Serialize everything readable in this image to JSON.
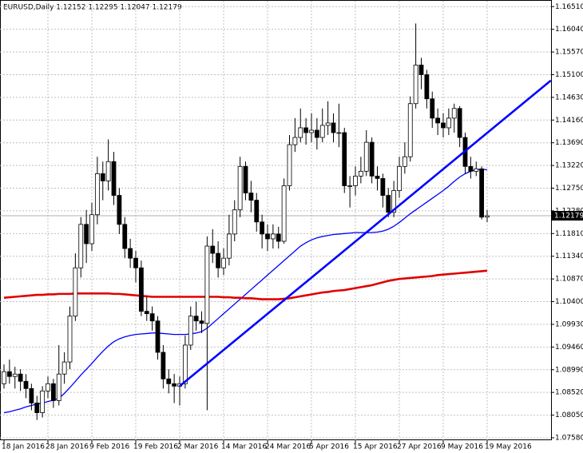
{
  "chart_data": {
    "type": "candlestick",
    "title": "EURUSD,Daily  1.12152 1.12295 1.12047 1.12179",
    "categories": [
      "18 Jan 2016",
      null,
      null,
      null,
      null,
      null,
      null,
      null,
      "28 Jan 2016",
      null,
      null,
      null,
      null,
      null,
      null,
      null,
      "9 Feb 2016",
      null,
      null,
      null,
      null,
      null,
      null,
      null,
      "19 Feb 2016",
      null,
      null,
      null,
      null,
      null,
      null,
      null,
      "2 Mar 2016",
      null,
      null,
      null,
      null,
      null,
      null,
      null,
      "14 Mar 2016",
      null,
      null,
      null,
      null,
      null,
      null,
      null,
      "24 Mar 2016",
      null,
      null,
      null,
      null,
      null,
      null,
      null,
      "5 Apr 2016",
      null,
      null,
      null,
      null,
      null,
      null,
      null,
      "15 Apr 2016",
      null,
      null,
      null,
      null,
      null,
      null,
      null,
      "27 Apr 2016",
      null,
      null,
      null,
      null,
      null,
      null,
      null,
      "9 May 2016",
      null,
      null,
      null,
      null,
      null,
      null,
      null,
      "19 May 2016"
    ],
    "ohlc": {
      "open": [
        1.087,
        1.0895,
        1.0885,
        1.089,
        1.0875,
        1.086,
        1.083,
        1.081,
        1.0855,
        1.087,
        1.0835,
        1.089,
        1.0915,
        1.101,
        1.111,
        1.12,
        1.116,
        1.122,
        1.1305,
        1.129,
        1.133,
        1.126,
        1.12,
        1.115,
        1.113,
        1.111,
        1.102,
        1.1015,
        1.1,
        1.0935,
        1.088,
        1.087,
        1.0865,
        1.087,
        1.095,
        1.101,
        1.1,
        1.0995,
        1.1155,
        1.114,
        1.111,
        1.113,
        1.118,
        1.123,
        1.132,
        1.1265,
        1.125,
        1.1205,
        1.118,
        1.117,
        1.118,
        1.1165,
        1.128,
        1.1365,
        1.138,
        1.14,
        1.139,
        1.1395,
        1.138,
        1.1405,
        1.141,
        1.139,
        1.139,
        1.128,
        1.128,
        1.13,
        1.131,
        1.137,
        1.13,
        1.1295,
        1.126,
        1.1225,
        1.127,
        1.132,
        1.134,
        1.145,
        1.153,
        1.151,
        1.146,
        1.142,
        1.141,
        1.14,
        1.142,
        1.144,
        1.138,
        1.132,
        1.131,
        1.1315,
        1.12152
      ],
      "high": [
        1.091,
        1.092,
        1.0905,
        1.09,
        1.089,
        1.087,
        1.0845,
        1.0865,
        1.0885,
        1.088,
        1.095,
        1.0935,
        1.103,
        1.114,
        1.1215,
        1.123,
        1.1245,
        1.134,
        1.133,
        1.1376,
        1.135,
        1.1275,
        1.1215,
        1.117,
        1.1145,
        1.1125,
        1.105,
        1.103,
        1.101,
        1.095,
        1.09,
        1.089,
        1.0885,
        1.097,
        1.103,
        1.104,
        1.102,
        1.1175,
        1.119,
        1.1165,
        1.115,
        1.122,
        1.125,
        1.134,
        1.133,
        1.129,
        1.1265,
        1.122,
        1.12,
        1.12,
        1.1195,
        1.1295,
        1.1385,
        1.142,
        1.144,
        1.142,
        1.143,
        1.142,
        1.144,
        1.1455,
        1.143,
        1.145,
        1.14,
        1.13,
        1.132,
        1.134,
        1.1395,
        1.138,
        1.132,
        1.1305,
        1.1275,
        1.129,
        1.134,
        1.137,
        1.1465,
        1.1616,
        1.1545,
        1.152,
        1.1475,
        1.144,
        1.143,
        1.144,
        1.145,
        1.1445,
        1.139,
        1.134,
        1.133,
        1.132,
        1.12295
      ],
      "low": [
        1.086,
        1.087,
        1.086,
        1.0855,
        1.084,
        1.0815,
        1.0795,
        1.08,
        1.084,
        1.082,
        1.0825,
        1.087,
        1.09,
        1.1,
        1.109,
        1.112,
        1.1145,
        1.12,
        1.125,
        1.127,
        1.124,
        1.118,
        1.113,
        1.111,
        1.108,
        1.101,
        1.1,
        1.098,
        1.092,
        1.086,
        1.085,
        1.083,
        1.0825,
        1.086,
        1.094,
        1.098,
        1.0975,
        1.0815,
        1.112,
        1.109,
        1.1095,
        1.1115,
        1.1165,
        1.1215,
        1.125,
        1.1225,
        1.1185,
        1.115,
        1.1145,
        1.115,
        1.115,
        1.116,
        1.127,
        1.135,
        1.137,
        1.1365,
        1.137,
        1.1355,
        1.137,
        1.1385,
        1.137,
        1.136,
        1.1265,
        1.1235,
        1.126,
        1.1285,
        1.13,
        1.1285,
        1.127,
        1.1235,
        1.1215,
        1.1215,
        1.1255,
        1.1305,
        1.133,
        1.144,
        1.148,
        1.144,
        1.14,
        1.1385,
        1.138,
        1.1385,
        1.139,
        1.136,
        1.1305,
        1.1295,
        1.13,
        1.121,
        1.12047
      ],
      "close": [
        1.0895,
        1.0885,
        1.089,
        1.0875,
        1.086,
        1.083,
        1.081,
        1.0855,
        1.087,
        1.0835,
        1.089,
        1.0915,
        1.101,
        1.111,
        1.12,
        1.116,
        1.122,
        1.1305,
        1.129,
        1.133,
        1.126,
        1.12,
        1.115,
        1.113,
        1.111,
        1.102,
        1.1015,
        1.1,
        1.0935,
        1.088,
        1.087,
        1.0865,
        1.087,
        1.095,
        1.101,
        1.1,
        1.0995,
        1.1155,
        1.114,
        1.111,
        1.113,
        1.118,
        1.123,
        1.132,
        1.1265,
        1.125,
        1.1205,
        1.118,
        1.117,
        1.118,
        1.1165,
        1.128,
        1.1365,
        1.138,
        1.14,
        1.139,
        1.1395,
        1.138,
        1.1405,
        1.141,
        1.139,
        1.139,
        1.128,
        1.128,
        1.13,
        1.131,
        1.137,
        1.13,
        1.1295,
        1.126,
        1.1225,
        1.127,
        1.132,
        1.134,
        1.145,
        1.153,
        1.151,
        1.146,
        1.142,
        1.141,
        1.14,
        1.142,
        1.144,
        1.138,
        1.132,
        1.131,
        1.1315,
        1.1215,
        1.12179
      ]
    },
    "moving_averages": [
      {
        "color": "#0000ff",
        "values": [
          1.081,
          1.0812,
          1.0815,
          1.0818,
          1.0822,
          1.0825,
          1.0828,
          1.083,
          1.0833,
          1.0836,
          1.084,
          1.085,
          1.0862,
          1.0875,
          1.0888,
          1.09,
          1.0912,
          1.0925,
          1.0937,
          1.0948,
          1.0957,
          1.0963,
          1.0967,
          1.097,
          1.0972,
          1.0973,
          1.0974,
          1.0975,
          1.0975,
          1.0974,
          1.0973,
          1.0972,
          1.0972,
          1.0972,
          1.0973,
          1.0975,
          1.0978,
          1.0985,
          1.0995,
          1.1005,
          1.1015,
          1.1025,
          1.1035,
          1.1045,
          1.1055,
          1.1065,
          1.1075,
          1.1085,
          1.1095,
          1.1105,
          1.1115,
          1.1125,
          1.1135,
          1.1145,
          1.1155,
          1.1162,
          1.1168,
          1.1172,
          1.1175,
          1.1177,
          1.1179,
          1.118,
          1.1181,
          1.1182,
          1.1183,
          1.1183,
          1.1183,
          1.1183,
          1.1184,
          1.1186,
          1.119,
          1.1196,
          1.1204,
          1.1213,
          1.1222,
          1.123,
          1.1238,
          1.1246,
          1.1254,
          1.1262,
          1.127,
          1.1279,
          1.1289,
          1.1298,
          1.1305,
          1.131,
          1.1313,
          1.1314,
          1.1313
        ]
      },
      {
        "color": "#e00000",
        "values": [
          1.1048,
          1.1049,
          1.105,
          1.1051,
          1.1052,
          1.1053,
          1.1054,
          1.1054,
          1.1055,
          1.1055,
          1.1056,
          1.1056,
          1.1056,
          1.1057,
          1.1057,
          1.1057,
          1.1057,
          1.1057,
          1.1057,
          1.1057,
          1.1056,
          1.1056,
          1.1055,
          1.1054,
          1.1053,
          1.1052,
          1.1051,
          1.105,
          1.105,
          1.105,
          1.105,
          1.105,
          1.105,
          1.105,
          1.105,
          1.105,
          1.105,
          1.105,
          1.105,
          1.105,
          1.1049,
          1.1049,
          1.1048,
          1.1048,
          1.1047,
          1.1047,
          1.1046,
          1.1045,
          1.1045,
          1.1045,
          1.1045,
          1.1046,
          1.1047,
          1.1049,
          1.1051,
          1.1053,
          1.1055,
          1.1057,
          1.1059,
          1.106,
          1.1062,
          1.1063,
          1.1064,
          1.1066,
          1.1068,
          1.107,
          1.1072,
          1.1074,
          1.1077,
          1.108,
          1.1083,
          1.1085,
          1.1087,
          1.1088,
          1.1089,
          1.109,
          1.1091,
          1.1092,
          1.1093,
          1.1095,
          1.1096,
          1.1097,
          1.1098,
          1.1099,
          1.11,
          1.1101,
          1.1102,
          1.1103,
          1.1104
        ]
      }
    ],
    "trend_line": {
      "color": "#0000ff",
      "from": {
        "category": 32,
        "value": 1.0865
      },
      "to": {
        "category": 99.6,
        "value": 1.1498
      }
    },
    "last_price": 1.12179,
    "ylim": [
      1.0753,
      1.1663
    ],
    "yticks": [
      {
        "value": 1.1651,
        "label": "1.16510"
      },
      {
        "value": 1.1604,
        "label": "1.16040"
      },
      {
        "value": 1.1557,
        "label": "1.15570"
      },
      {
        "value": 1.151,
        "label": "1.15100"
      },
      {
        "value": 1.1463,
        "label": "1.14630"
      },
      {
        "value": 1.1416,
        "label": "1.14160"
      },
      {
        "value": 1.1369,
        "label": "1.13690"
      },
      {
        "value": 1.1322,
        "label": "1.13220"
      },
      {
        "value": 1.1275,
        "label": "1.12750"
      },
      {
        "value": 1.1228,
        "label": "1.12280"
      },
      {
        "value": 1.1181,
        "label": "1.11810"
      },
      {
        "value": 1.1134,
        "label": "1.11340"
      },
      {
        "value": 1.1087,
        "label": "1.10870"
      },
      {
        "value": 1.104,
        "label": "1.10400"
      },
      {
        "value": 1.0993,
        "label": "1.09930"
      },
      {
        "value": 1.0946,
        "label": "1.09460"
      },
      {
        "value": 1.0899,
        "label": "1.08990"
      },
      {
        "value": 1.0852,
        "label": "1.08520"
      },
      {
        "value": 1.0805,
        "label": "1.08050"
      },
      {
        "value": 1.0758,
        "label": "1.07580"
      }
    ],
    "grid": true,
    "bull_color": "#ffffff",
    "bear_color": "#000000"
  }
}
